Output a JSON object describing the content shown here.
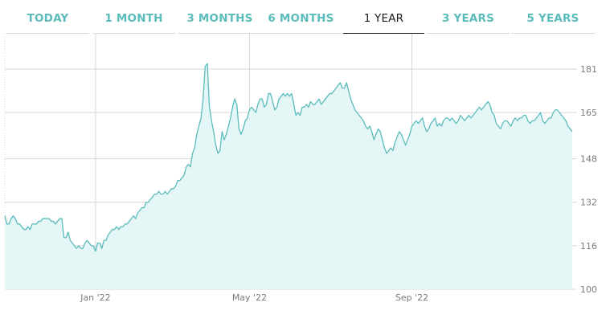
{
  "tabs": [
    {
      "label": "TODAY",
      "active": false
    },
    {
      "label": "1 MONTH",
      "active": false
    },
    {
      "label": "3 MONTHS",
      "active": false
    },
    {
      "label": "6 MONTHS",
      "active": false
    },
    {
      "label": "1 YEAR",
      "active": true
    },
    {
      "label": "3 YEARS",
      "active": false
    },
    {
      "label": "5 YEARS",
      "active": false
    }
  ],
  "colors": {
    "line": "#5bbcbc",
    "fill": "#e4f6f5",
    "grid": "#d7d7d7",
    "tab_text": "#5bbcbc",
    "tab_active": "#1a1a1a"
  },
  "chart_data": {
    "type": "area",
    "title": "",
    "xlabel": "",
    "ylabel": "",
    "grid": true,
    "x_tick_labels": [
      {
        "label": "Jan '22",
        "index": 43
      },
      {
        "label": "May '22",
        "index": 116
      },
      {
        "label": "Sep '22",
        "index": 193
      }
    ],
    "y_ticks": [
      181,
      165,
      148,
      132,
      116,
      100
    ],
    "ylim": [
      100,
      194
    ],
    "values": [
      127,
      124,
      124,
      126,
      127,
      126,
      124,
      124,
      123,
      122,
      122,
      123,
      122,
      124,
      124,
      124,
      125,
      125,
      126,
      126,
      126,
      126,
      125,
      125,
      124,
      125,
      126,
      126,
      119,
      119,
      121,
      118,
      117,
      116,
      115,
      116,
      115,
      115,
      117,
      118,
      117,
      116,
      116,
      114,
      117,
      117,
      115,
      118,
      118,
      120,
      121,
      122,
      122,
      123,
      122,
      123,
      123,
      124,
      124,
      125,
      126,
      127,
      126,
      128,
      129,
      130,
      130,
      132,
      132,
      133,
      134,
      135,
      135,
      136,
      135,
      135,
      136,
      135,
      136,
      137,
      137,
      138,
      140,
      140,
      141,
      142,
      145,
      146,
      145,
      150,
      152,
      157,
      160,
      163,
      170,
      182,
      183,
      167,
      162,
      158,
      153,
      150,
      151,
      158,
      155,
      157,
      160,
      163,
      167,
      170,
      168,
      159,
      157,
      159,
      162,
      163,
      166,
      167,
      166,
      165,
      168,
      170,
      170,
      167,
      168,
      172,
      172,
      169,
      166,
      167,
      170,
      171,
      172,
      171,
      172,
      171,
      172,
      168,
      164,
      165,
      164,
      167,
      167,
      168,
      167,
      169,
      168,
      168,
      169,
      170,
      168,
      169,
      170,
      171,
      172,
      172,
      173,
      174,
      175,
      176,
      174,
      174,
      176,
      173,
      170,
      168,
      166,
      165,
      164,
      163,
      162,
      160,
      159,
      160,
      158,
      155,
      157,
      159,
      158,
      155,
      152,
      150,
      151,
      152,
      151,
      154,
      156,
      158,
      157,
      155,
      153,
      155,
      157,
      160,
      161,
      162,
      161,
      162,
      163,
      160,
      158,
      159,
      161,
      162,
      163,
      160,
      161,
      160,
      162,
      163,
      163,
      162,
      163,
      162,
      161,
      162,
      164,
      163,
      162,
      163,
      164,
      163,
      164,
      165,
      166,
      167,
      166,
      167,
      168,
      169,
      168,
      165,
      164,
      161,
      160,
      159,
      161,
      162,
      162,
      161,
      160,
      162,
      163,
      162,
      163,
      163,
      164,
      164,
      162,
      161,
      162,
      162,
      163,
      164,
      165,
      162,
      161,
      162,
      163,
      163,
      165,
      166,
      166,
      165,
      164,
      163,
      162,
      160,
      159,
      158
    ]
  }
}
